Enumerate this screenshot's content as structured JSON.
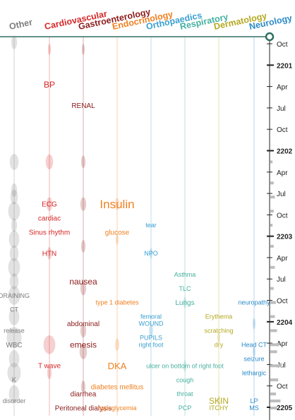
{
  "chart_data": {
    "type": "violin-timeline",
    "title": "",
    "xlabel": "",
    "ylabel": "",
    "categories": [
      {
        "name": "Other",
        "color": "#7d7d7d"
      },
      {
        "name": "Cardiovascular",
        "color": "#d62728"
      },
      {
        "name": "Gastroenterology",
        "color": "#8b1a1a"
      },
      {
        "name": "Endocrinology",
        "color": "#f08020"
      },
      {
        "name": "Orthopaedics",
        "color": "#3aa0d0"
      },
      {
        "name": "Respiratory",
        "color": "#45b0a0"
      },
      {
        "name": "Dermatology",
        "color": "#b5a820"
      },
      {
        "name": "Neurology",
        "color": "#2a8ac8"
      }
    ],
    "y_axis": {
      "ticks": [
        "Oct",
        "2201",
        "Apr",
        "Jul",
        "Oct",
        "2202",
        "Apr",
        "Jul",
        "Oct",
        "2203",
        "Apr",
        "Jul",
        "Oct",
        "2204",
        "Apr",
        "Jul",
        "Oct",
        "2205"
      ],
      "bold_ticks": [
        "2201",
        "2202",
        "2203",
        "2204",
        "2205"
      ],
      "current_marker": "Oct"
    },
    "terms": [
      {
        "text": "BP",
        "category": "Cardiovascular",
        "time": "2201-04",
        "size": 12
      },
      {
        "text": "RENAL",
        "category": "Gastroenterology",
        "time": "2201-07",
        "size": 10
      },
      {
        "text": "ECG",
        "category": "Cardiovascular",
        "time": "2202-09",
        "size": 10
      },
      {
        "text": "Insulin",
        "category": "Endocrinology",
        "time": "2202-09",
        "size": 17
      },
      {
        "text": "cardiac",
        "category": "Cardiovascular",
        "time": "2202-11",
        "size": 10
      },
      {
        "text": "tear",
        "category": "Orthopaedics",
        "time": "2202-12",
        "size": 9
      },
      {
        "text": "Sinus rhythm",
        "category": "Cardiovascular",
        "time": "2203-01",
        "size": 10
      },
      {
        "text": "glucose",
        "category": "Endocrinology",
        "time": "2203-01",
        "size": 10
      },
      {
        "text": "HTN",
        "category": "Cardiovascular",
        "time": "2203-04",
        "size": 10
      },
      {
        "text": "NPO",
        "category": "Orthopaedics",
        "time": "2203-04",
        "size": 9
      },
      {
        "text": "Asthma",
        "category": "Respiratory",
        "time": "2203-07",
        "size": 9
      },
      {
        "text": "nausea",
        "category": "Gastroenterology",
        "time": "2203-08",
        "size": 12
      },
      {
        "text": "TLC",
        "category": "Respiratory",
        "time": "2203-09",
        "size": 9
      },
      {
        "text": "DRAINING",
        "category": "Other",
        "time": "2203-10",
        "size": 9
      },
      {
        "text": "Lungs",
        "category": "Respiratory",
        "time": "2203-11",
        "size": 10
      },
      {
        "text": "type 1 diabetes",
        "category": "Endocrinology",
        "time": "2203-11",
        "size": 9
      },
      {
        "text": "neuropathy",
        "category": "Neurology",
        "time": "2203-11",
        "size": 9
      },
      {
        "text": "CT",
        "category": "Other",
        "time": "2203-12",
        "size": 9
      },
      {
        "text": "femoral",
        "category": "Orthopaedics",
        "time": "2204-01",
        "size": 9
      },
      {
        "text": "Erythema",
        "category": "Dermatology",
        "time": "2204-01",
        "size": 9
      },
      {
        "text": "abdominal",
        "category": "Gastroenterology",
        "time": "2204-02",
        "size": 10
      },
      {
        "text": "WOUND",
        "category": "Orthopaedics",
        "time": "2204-02",
        "size": 9
      },
      {
        "text": "release",
        "category": "Other",
        "time": "2204-03",
        "size": 9
      },
      {
        "text": "scratching",
        "category": "Dermatology",
        "time": "2204-03",
        "size": 9
      },
      {
        "text": "PUPILS",
        "category": "Orthopaedics",
        "time": "2204-04",
        "size": 9
      },
      {
        "text": "emesis",
        "category": "Gastroenterology",
        "time": "2204-05",
        "size": 12
      },
      {
        "text": "right foot",
        "category": "Orthopaedics",
        "time": "2204-05",
        "size": 9
      },
      {
        "text": "dry",
        "category": "Dermatology",
        "time": "2204-05",
        "size": 9
      },
      {
        "text": "Head CT",
        "category": "Neurology",
        "time": "2204-05",
        "size": 9
      },
      {
        "text": "WBC",
        "category": "Other",
        "time": "2204-05",
        "size": 10
      },
      {
        "text": "seizure",
        "category": "Neurology",
        "time": "2204-07",
        "size": 9
      },
      {
        "text": "T wave",
        "category": "Cardiovascular",
        "time": "2204-08",
        "size": 10
      },
      {
        "text": "DKA",
        "category": "Endocrinology",
        "time": "2204-08",
        "size": 13
      },
      {
        "text": "ulcer on bottom of right foot",
        "category": "Respiratory",
        "time": "2204-08",
        "size": 9
      },
      {
        "text": "lethargic",
        "category": "Neurology",
        "time": "2204-09",
        "size": 9
      },
      {
        "text": "K",
        "category": "Other",
        "time": "2204-10",
        "size": 10
      },
      {
        "text": "cough",
        "category": "Respiratory",
        "time": "2204-10",
        "size": 9
      },
      {
        "text": "diabetes mellitus",
        "category": "Endocrinology",
        "time": "2204-11",
        "size": 10
      },
      {
        "text": "throat",
        "category": "Respiratory",
        "time": "2204-12",
        "size": 9
      },
      {
        "text": "diarrhea",
        "category": "Gastroenterology",
        "time": "2204-12",
        "size": 10
      },
      {
        "text": "disorder",
        "category": "Other",
        "time": "2205-01",
        "size": 9
      },
      {
        "text": "SKIN",
        "category": "Dermatology",
        "time": "2205-01",
        "size": 12
      },
      {
        "text": "LP",
        "category": "Neurology",
        "time": "2205-01",
        "size": 9
      },
      {
        "text": "PCP",
        "category": "Respiratory",
        "time": "2205-02",
        "size": 9
      },
      {
        "text": "Peritoneal dialysis",
        "category": "Gastroenterology",
        "time": "2205-02",
        "size": 10
      },
      {
        "text": "hypoglycemia",
        "category": "Endocrinology",
        "time": "2205-02",
        "size": 9
      },
      {
        "text": "ITCHY",
        "category": "Dermatology",
        "time": "2205-02",
        "size": 9
      },
      {
        "text": "MS",
        "category": "Neurology",
        "time": "2205-02",
        "size": 9
      }
    ],
    "violins": {
      "Other": [
        {
          "time": "2200-10",
          "width": 4
        },
        {
          "time": "2202-03",
          "width": 6
        },
        {
          "time": "2202-07",
          "width": 4
        },
        {
          "time": "2202-08",
          "width": 5
        },
        {
          "time": "2202-10",
          "width": 8
        },
        {
          "time": "2202-12",
          "width": 4
        },
        {
          "time": "2203-02",
          "width": 7
        },
        {
          "time": "2203-04",
          "width": 6
        },
        {
          "time": "2203-06",
          "width": 8
        },
        {
          "time": "2203-08",
          "width": 6
        },
        {
          "time": "2203-10",
          "width": 8
        },
        {
          "time": "2204-01",
          "width": 7
        },
        {
          "time": "2204-04",
          "width": 10
        },
        {
          "time": "2204-07",
          "width": 7
        },
        {
          "time": "2204-09",
          "width": 9
        },
        {
          "time": "2204-12",
          "width": 7
        }
      ],
      "Cardiovascular": [
        {
          "time": "2200-11",
          "width": 2
        },
        {
          "time": "2202-03",
          "width": 5
        },
        {
          "time": "2202-09",
          "width": 4
        },
        {
          "time": "2203-04",
          "width": 3
        },
        {
          "time": "2204-05",
          "width": 8
        },
        {
          "time": "2204-09",
          "width": 3
        }
      ],
      "Gastroenterology": [
        {
          "time": "2200-11",
          "width": 2
        },
        {
          "time": "2202-03",
          "width": 3
        },
        {
          "time": "2202-09",
          "width": 4
        },
        {
          "time": "2203-03",
          "width": 3
        },
        {
          "time": "2203-09",
          "width": 4
        },
        {
          "time": "2204-03",
          "width": 4
        },
        {
          "time": "2204-06",
          "width": 5
        },
        {
          "time": "2204-11",
          "width": 3
        }
      ],
      "Endocrinology": [
        {
          "time": "2202-09",
          "width": 3
        },
        {
          "time": "2203-02",
          "width": 2
        },
        {
          "time": "2204-05",
          "width": 3
        }
      ],
      "Orthopaedics": [
        {
          "time": "2203-04",
          "width": 2
        },
        {
          "time": "2204-03",
          "width": 3
        }
      ],
      "Respiratory": [
        {
          "time": "2203-11",
          "width": 2
        },
        {
          "time": "2204-08",
          "width": 2
        }
      ],
      "Dermatology": [
        {
          "time": "2204-04",
          "width": 2
        },
        {
          "time": "2205-01",
          "width": 2
        }
      ],
      "Neurology": [
        {
          "time": "2204-02",
          "width": 2
        },
        {
          "time": "2204-06",
          "width": 2
        }
      ]
    },
    "histogram": [
      {
        "time": "2202-03",
        "value": 2
      },
      {
        "time": "2202-06",
        "value": 3
      },
      {
        "time": "2202-08",
        "value": 4
      },
      {
        "time": "2202-10",
        "value": 3
      },
      {
        "time": "2202-12",
        "value": 2
      },
      {
        "time": "2203-03",
        "value": 3
      },
      {
        "time": "2203-06",
        "value": 4
      },
      {
        "time": "2203-09",
        "value": 3
      },
      {
        "time": "2203-11",
        "value": 5
      },
      {
        "time": "2204-01",
        "value": 4
      },
      {
        "time": "2204-03",
        "value": 6
      },
      {
        "time": "2204-05",
        "value": 8
      },
      {
        "time": "2204-06",
        "value": 6
      },
      {
        "time": "2204-08",
        "value": 10
      },
      {
        "time": "2204-10",
        "value": 7
      },
      {
        "time": "2204-12",
        "value": 5
      },
      {
        "time": "2205-01",
        "value": 9
      },
      {
        "time": "2205-02",
        "value": 6
      }
    ]
  }
}
